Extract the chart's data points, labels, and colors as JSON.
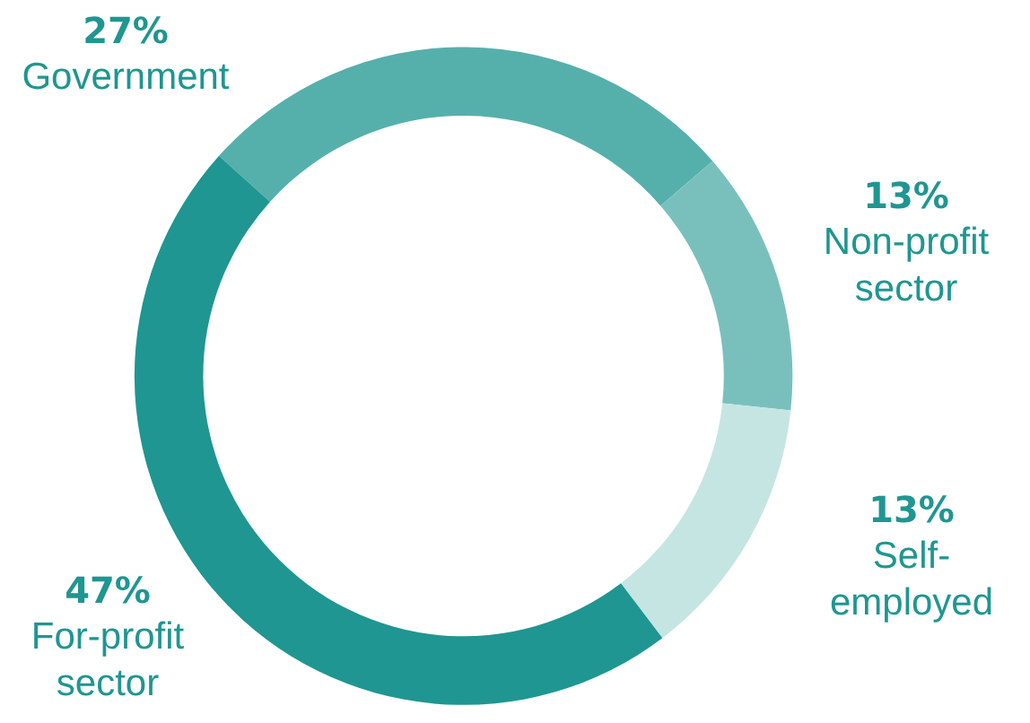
{
  "chart_data": {
    "type": "donut",
    "categories": [
      "Government",
      "Non-profit sector",
      "Self-employed",
      "For-profit sector"
    ],
    "values": [
      27,
      13,
      13,
      47
    ],
    "value_labels": [
      "27%",
      "13%",
      "13%",
      "47%"
    ],
    "colors": [
      "#55b0ac",
      "#79c0bd",
      "#c5e5e3",
      "#1f9691"
    ],
    "legend": false
  }
}
